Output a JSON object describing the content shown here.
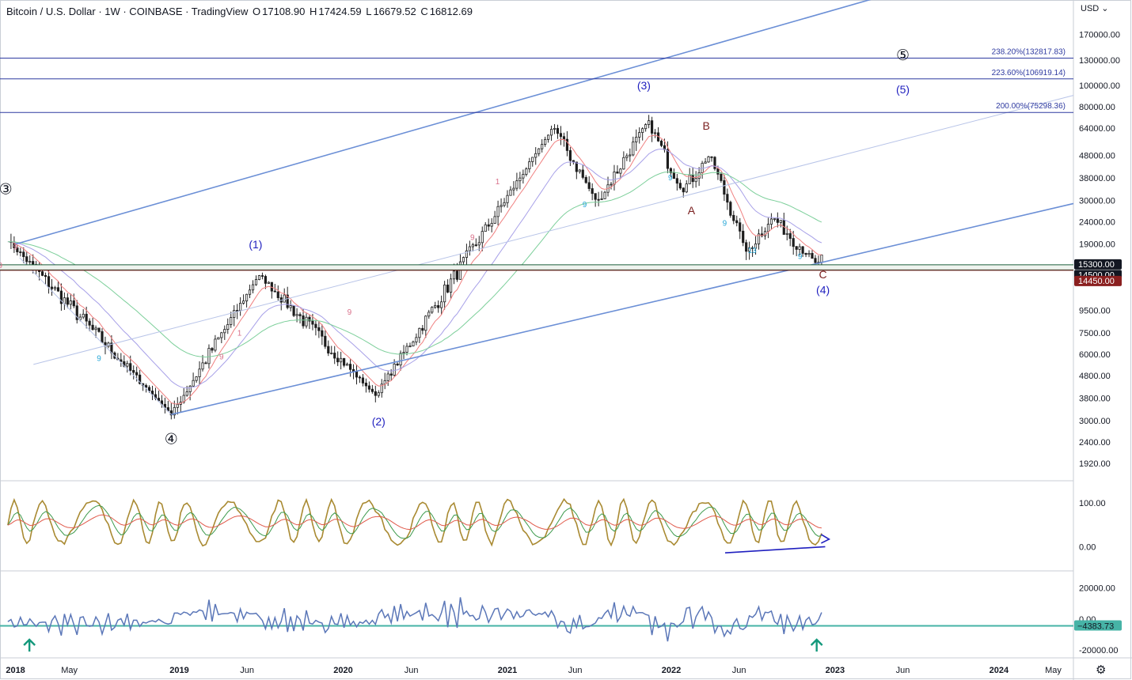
{
  "header": {
    "symbol": "Bitcoin / U.S. Dollar · 1W · COINBASE · TradingView",
    "o_label": "O",
    "o_value": "17108.90",
    "h_label": "H",
    "h_value": "17424.59",
    "l_label": "L",
    "l_value": "16679.52",
    "c_label": "C",
    "c_value": "16812.69"
  },
  "currency": "USD",
  "currency_icon": "chevron-down-icon",
  "settings_icon": "gear-icon",
  "colors": {
    "up": "#26a69a",
    "down": "#ef5350",
    "channel": "#6b8fd6",
    "fib": "#2e3aa0",
    "ema_fast": "#f08080",
    "ema_slow": "#a7a0e8",
    "ema_long": "#7ccf9a",
    "osc_main": "#a98a32",
    "obv": "#5b77b8",
    "support_band": "#1b5e3a",
    "resistance_line": "#7a1f1f"
  },
  "chart_data": [
    {
      "type": "candlestick",
      "title": "Bitcoin / U.S. Dollar · 1W · COINBASE",
      "scale": "log",
      "ylim": [
        1600,
        240000
      ],
      "x_tick_labels": [
        "2018",
        "May",
        "2019",
        "Jun",
        "2020",
        "Jun",
        "2021",
        "Jun",
        "2022",
        "Jun",
        "2023",
        "Jun",
        "2024",
        "May"
      ],
      "y_tick_labels": [
        "170000.00",
        "130000.00",
        "100000.00",
        "80000.00",
        "64000.00",
        "48000.00",
        "38000.00",
        "30000.00",
        "24000.00",
        "19000.00",
        "15300.00",
        "14500.00",
        "14450.00",
        "9500.00",
        "7500.00",
        "6000.00",
        "4800.00",
        "3800.00",
        "3000.00",
        "2400.00",
        "1920.00"
      ],
      "y_ticks": [
        170000,
        130000,
        100000,
        80000,
        64000,
        48000,
        38000,
        30000,
        24000,
        19000,
        9500,
        7500,
        6000,
        4800,
        3800,
        3000,
        2400,
        1920
      ],
      "price_tags": [
        {
          "label": "15300.00",
          "value": 15300,
          "style": "dark"
        },
        {
          "label": "14500.00",
          "value": 14500,
          "style": "dark"
        },
        {
          "label": "14450.00",
          "value": 14450,
          "style": "red"
        }
      ],
      "fib_levels": [
        {
          "label": "238.20%(132817.83)",
          "value": 132817.83
        },
        {
          "label": "223.60%(106919.14)",
          "value": 106919.14
        },
        {
          "label": "200.00%(75298.36)",
          "value": 75298.36
        }
      ],
      "support_levels": [
        15300,
        14500
      ],
      "resistance_level": 14450,
      "key_points": [
        {
          "date": "2017-12-15",
          "price": 19800
        },
        {
          "date": "2018-12-14",
          "price": 3200
        },
        {
          "date": "2019-06-28",
          "price": 13800
        },
        {
          "date": "2020-03-13",
          "price": 3900
        },
        {
          "date": "2021-04-14",
          "price": 64800
        },
        {
          "date": "2021-07-20",
          "price": 29300
        },
        {
          "date": "2021-11-10",
          "price": 69000
        },
        {
          "date": "2022-01-24",
          "price": 33000
        },
        {
          "date": "2022-03-28",
          "price": 48200
        },
        {
          "date": "2022-06-18",
          "price": 17600
        },
        {
          "date": "2022-08-15",
          "price": 25200
        },
        {
          "date": "2022-11-21",
          "price": 15500
        },
        {
          "date": "2022-12-05",
          "price": 16812.69
        }
      ],
      "wave_labels": [
        {
          "text": "③",
          "kind": "circle"
        },
        {
          "text": "(1)",
          "kind": "blue"
        },
        {
          "text": "④",
          "kind": "circle"
        },
        {
          "text": "(2)",
          "kind": "blue"
        },
        {
          "text": "(3)",
          "kind": "blue"
        },
        {
          "text": "B",
          "kind": "red"
        },
        {
          "text": "A",
          "kind": "red"
        },
        {
          "text": "C",
          "kind": "red"
        },
        {
          "text": "(4)",
          "kind": "blue"
        },
        {
          "text": "(5)",
          "kind": "blue"
        },
        {
          "text": "⑤",
          "kind": "circle"
        }
      ],
      "td_counts": [
        {
          "text": "9",
          "color": "pink"
        },
        {
          "text": "9",
          "color": "pink"
        },
        {
          "text": "9",
          "color": "cyan"
        },
        {
          "text": "9",
          "color": "pink"
        },
        {
          "text": "1",
          "color": "pink"
        },
        {
          "text": "9",
          "color": "pink"
        },
        {
          "text": "9",
          "color": "pink"
        },
        {
          "text": "1",
          "color": "pink"
        },
        {
          "text": "9",
          "color": "cyan"
        },
        {
          "text": "9",
          "color": "cyan"
        },
        {
          "text": "9",
          "color": "cyan"
        },
        {
          "text": "13",
          "color": "cyan"
        },
        {
          "text": "9",
          "color": "cyan"
        }
      ]
    },
    {
      "type": "line",
      "title": "",
      "y_tick_labels": [
        "100.00",
        "0.00"
      ],
      "y_ticks": [
        100,
        0
      ],
      "ylim": [
        -55,
        150
      ]
    },
    {
      "type": "line",
      "title": "",
      "y_tick_labels": [
        "20000.00",
        "0.00",
        "-20000.00"
      ],
      "y_ticks": [
        20000,
        0,
        -20000
      ],
      "ylim": [
        -25000,
        31000
      ],
      "last_value_label": "−4383.73",
      "last_value": -4383.73
    }
  ]
}
